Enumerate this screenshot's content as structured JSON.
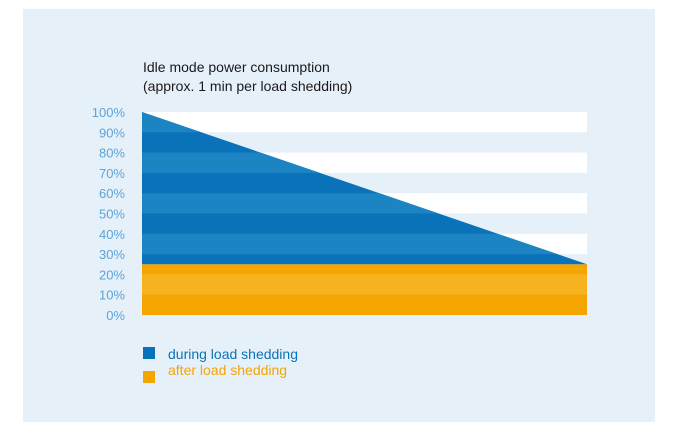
{
  "chart_data": {
    "type": "area",
    "title": [
      "Idle mode power consumption",
      "(approx. 1 min per load shedding)"
    ],
    "xlabel": "",
    "ylabel": "",
    "ylim": [
      0,
      100
    ],
    "y_ticks": [
      "100%",
      "90%",
      "80%",
      "70%",
      "60%",
      "50%",
      "40%",
      "30%",
      "20%",
      "10%",
      "0%"
    ],
    "grid": "alternating horizontal bands",
    "series": [
      {
        "name": "during load shedding",
        "color": "#0a72b9",
        "start": 100,
        "end": 25
      },
      {
        "name": "after load shedding",
        "color": "#f5a500",
        "start": 25,
        "end": 25
      }
    ],
    "legend_position": "bottom-left"
  }
}
